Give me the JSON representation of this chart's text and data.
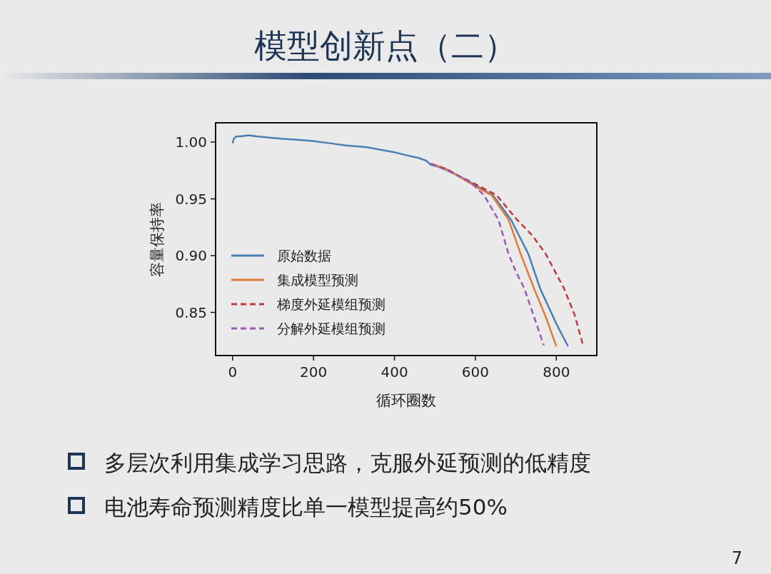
{
  "chart_data": {
    "type": "line",
    "title": "模型创新点（二）",
    "xlabel": "循环圈数",
    "ylabel": "容量保持率",
    "xlim": [
      -42,
      900
    ],
    "ylim": [
      0.812,
      1.017
    ],
    "xticks": [
      0,
      200,
      400,
      600,
      800
    ],
    "yticks": [
      0.85,
      {
        "value": 0.9,
        "label": "0.90"
      },
      0.95,
      {
        "value": 1.0,
        "label": "1.00"
      }
    ],
    "grid": false,
    "legend": "bottom left",
    "series": [
      {
        "name": "原始数据",
        "color": "#4a7fb5",
        "line_style": "solid",
        "x": [
          0,
          3,
          9,
          20,
          39,
          60,
          90,
          120,
          160,
          198,
          240,
          280,
          332,
          370,
          400,
          435,
          460,
          478,
          490,
          520,
          563,
          600,
          643,
          688,
          731,
          760,
          800,
          829
        ],
        "values": [
          0.999,
          1.003,
          1.005,
          1.005,
          1.006,
          1.005,
          1.004,
          1.003,
          1.002,
          1.001,
          0.999,
          0.997,
          0.9955,
          0.993,
          0.991,
          0.988,
          0.986,
          0.9837,
          0.98,
          0.977,
          0.9695,
          0.962,
          0.9533,
          0.9316,
          0.9014,
          0.871,
          0.84,
          0.82
        ]
      },
      {
        "name": "集成模型预测",
        "color": "#e07b39",
        "line_style": "solid",
        "x": [
          490,
          530,
          563,
          600,
          640,
          682,
          712,
          745,
          775,
          800
        ],
        "values": [
          0.981,
          0.976,
          0.969,
          0.961,
          0.9533,
          0.9316,
          0.9014,
          0.871,
          0.845,
          0.82
        ]
      },
      {
        "name": "梯度外延模组预测",
        "color": "#c0393f",
        "line_style": "dashed",
        "x": [
          490,
          530,
          563,
          600,
          652,
          703,
          740,
          774,
          819,
          845,
          866
        ],
        "values": [
          0.981,
          0.976,
          0.9695,
          0.963,
          0.9533,
          0.9316,
          0.918,
          0.9014,
          0.871,
          0.848,
          0.821
        ]
      },
      {
        "name": "分解外延模组预测",
        "color": "#9b59b6",
        "line_style": "dashed",
        "x": [
          490,
          530,
          557,
          590,
          621,
          657,
          682,
          700,
          721,
          745,
          769
        ],
        "values": [
          0.981,
          0.975,
          0.9706,
          0.964,
          0.9533,
          0.9316,
          0.9014,
          0.886,
          0.871,
          0.846,
          0.821
        ]
      }
    ],
    "annotations": [
      "多层次利用集成学习思路，克服外延预测的低精度",
      "电池寿命预测精度比单一模型提高约50%",
      "7"
    ]
  }
}
